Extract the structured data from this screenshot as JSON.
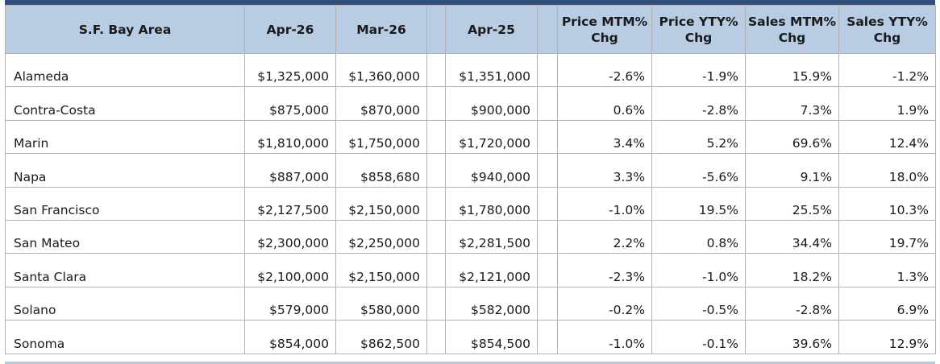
{
  "table": {
    "headers": {
      "area": "S.F. Bay Area",
      "apr26": "Apr-26",
      "mar26": "Mar-26",
      "apr25": "Apr-25",
      "price_mtm": "Price MTM% Chg",
      "price_yty": "Price YTY% Chg",
      "sales_mtm": "Sales MTM% Chg",
      "sales_yty": "Sales YTY% Chg"
    },
    "rows": [
      {
        "area": "Alameda",
        "apr26": "$1,325,000",
        "mar26": "$1,360,000",
        "apr25": "$1,351,000",
        "price_mtm": "-2.6%",
        "price_yty": "-1.9%",
        "sales_mtm": "15.9%",
        "sales_yty": "-1.2%"
      },
      {
        "area": "Contra-Costa",
        "apr26": "$875,000",
        "mar26": "$870,000",
        "apr25": "$900,000",
        "price_mtm": "0.6%",
        "price_yty": "-2.8%",
        "sales_mtm": "7.3%",
        "sales_yty": "1.9%"
      },
      {
        "area": "Marin",
        "apr26": "$1,810,000",
        "mar26": "$1,750,000",
        "apr25": "$1,720,000",
        "price_mtm": "3.4%",
        "price_yty": "5.2%",
        "sales_mtm": "69.6%",
        "sales_yty": "12.4%"
      },
      {
        "area": "Napa",
        "apr26": "$887,000",
        "mar26": "$858,680",
        "apr25": "$940,000",
        "price_mtm": "3.3%",
        "price_yty": "-5.6%",
        "sales_mtm": "9.1%",
        "sales_yty": "18.0%"
      },
      {
        "area": "San Francisco",
        "apr26": "$2,127,500",
        "mar26": "$2,150,000",
        "apr25": "$1,780,000",
        "price_mtm": "-1.0%",
        "price_yty": "19.5%",
        "sales_mtm": "25.5%",
        "sales_yty": "10.3%"
      },
      {
        "area": "San Mateo",
        "apr26": "$2,300,000",
        "mar26": "$2,250,000",
        "apr25": "$2,281,500",
        "price_mtm": "2.2%",
        "price_yty": "0.8%",
        "sales_mtm": "34.4%",
        "sales_yty": "19.7%"
      },
      {
        "area": "Santa Clara",
        "apr26": "$2,100,000",
        "mar26": "$2,150,000",
        "apr25": "$2,121,000",
        "price_mtm": "-2.3%",
        "price_yty": "-1.0%",
        "sales_mtm": "18.2%",
        "sales_yty": "1.3%"
      },
      {
        "area": "Solano",
        "apr26": "$579,000",
        "mar26": "$580,000",
        "apr25": "$582,000",
        "price_mtm": "-0.2%",
        "price_yty": "-0.5%",
        "sales_mtm": "-2.8%",
        "sales_yty": "6.9%"
      },
      {
        "area": "Sonoma",
        "apr26": "$854,000",
        "mar26": "$862,500",
        "apr25": "$854,500",
        "price_mtm": "-1.0%",
        "price_yty": "-0.1%",
        "sales_mtm": "39.6%",
        "sales_yty": "12.9%"
      }
    ]
  },
  "colors": {
    "header_background": "#b8cce4",
    "top_bar": "#2f4f7f",
    "grid_lines": "#b3b3b3"
  }
}
